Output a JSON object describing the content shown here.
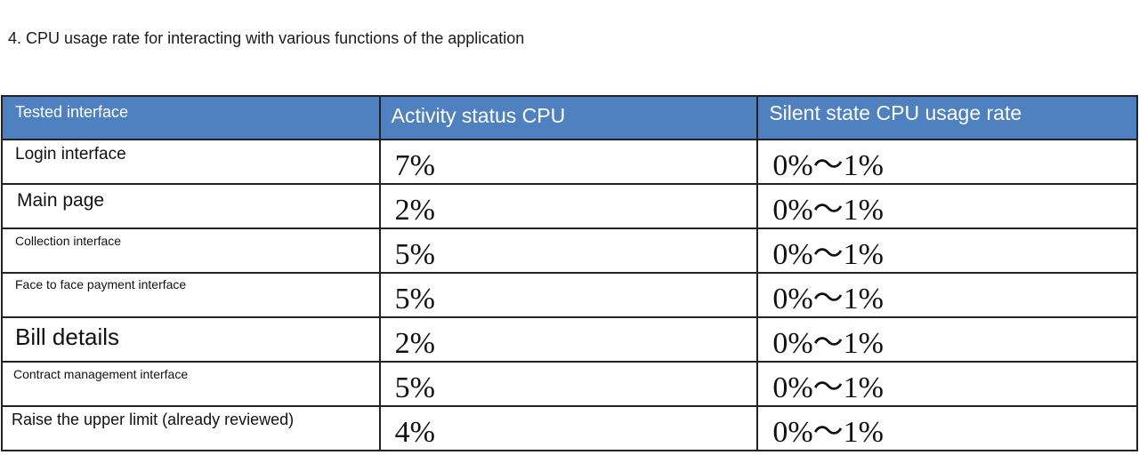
{
  "document": {
    "heading": "4. CPU usage rate for interacting with various functions of the application"
  },
  "table": {
    "headers": [
      "Tested interface",
      "Activity status CPU",
      "Silent state CPU usage rate"
    ],
    "rows": [
      {
        "interface": "Login interface",
        "activity_cpu": "7%",
        "silent_cpu": "0%～1%"
      },
      {
        "interface": "Main page",
        "activity_cpu": "2%",
        "silent_cpu": "0%～1%"
      },
      {
        "interface": "Collection interface",
        "activity_cpu": "5%",
        "silent_cpu": "0%～1%"
      },
      {
        "interface": "Face to face payment interface",
        "activity_cpu": "5%",
        "silent_cpu": "0%～1%"
      },
      {
        "interface": "Bill details",
        "activity_cpu": "2%",
        "silent_cpu": "0%～1%"
      },
      {
        "interface": "Contract management interface",
        "activity_cpu": "5%",
        "silent_cpu": "0%～1%"
      },
      {
        "interface": "Raise the upper limit (already reviewed)",
        "activity_cpu": "4%",
        "silent_cpu": "0%～1%"
      }
    ],
    "header_color": "#4f80c0"
  }
}
